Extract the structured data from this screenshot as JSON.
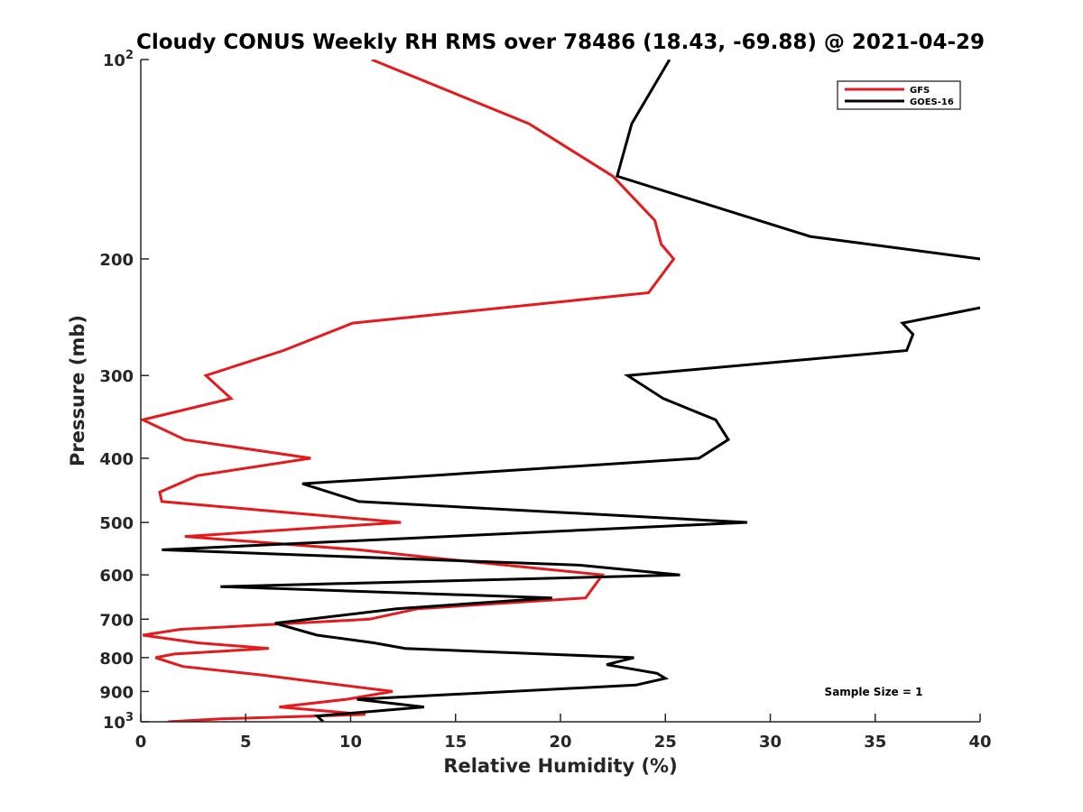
{
  "chart_data": {
    "type": "line",
    "title": "Cloudy CONUS Weekly RH RMS over 78486 (18.43, -69.88) @ 2021-04-29",
    "xlabel": "Relative Humidity (%)",
    "ylabel": "Pressure (mb)",
    "xlim": [
      0,
      40
    ],
    "ylim": [
      100,
      1000
    ],
    "y_scale": "log",
    "y_reversed": true,
    "x_ticks": [
      {
        "value": 0,
        "label": "0"
      },
      {
        "value": 5,
        "label": "5"
      },
      {
        "value": 10,
        "label": "10"
      },
      {
        "value": 15,
        "label": "15"
      },
      {
        "value": 20,
        "label": "20"
      },
      {
        "value": 25,
        "label": "25"
      },
      {
        "value": 30,
        "label": "30"
      },
      {
        "value": 35,
        "label": "35"
      },
      {
        "value": 40,
        "label": "40"
      }
    ],
    "y_ticks": [
      {
        "value": 100,
        "base": "10",
        "exp": "2"
      },
      {
        "value": 200,
        "label": "200"
      },
      {
        "value": 300,
        "label": "300"
      },
      {
        "value": 400,
        "label": "400"
      },
      {
        "value": 500,
        "label": "500"
      },
      {
        "value": 600,
        "label": "600"
      },
      {
        "value": 700,
        "label": "700"
      },
      {
        "value": 800,
        "label": "800"
      },
      {
        "value": 900,
        "label": "900"
      },
      {
        "value": 1000,
        "base": "10",
        "exp": "3"
      }
    ],
    "grid": false,
    "legend_position": "top-right",
    "annotation": "Sample Size = 1",
    "series": [
      {
        "name": "GFS",
        "color": "#e41a1c",
        "points": [
          [
            11.0,
            100
          ],
          [
            18.5,
            125
          ],
          [
            22.5,
            150
          ],
          [
            24.5,
            175
          ],
          [
            24.8,
            190
          ],
          [
            25.4,
            200
          ],
          [
            24.2,
            225
          ],
          [
            10.1,
            250
          ],
          [
            6.8,
            275
          ],
          [
            3.1,
            300
          ],
          [
            4.3,
            325
          ],
          [
            0.1,
            350
          ],
          [
            2.1,
            375
          ],
          [
            8.1,
            400
          ],
          [
            2.7,
            425
          ],
          [
            0.9,
            450
          ],
          [
            1.0,
            465
          ],
          [
            12.4,
            500
          ],
          [
            2.1,
            525
          ],
          [
            10.4,
            550
          ],
          [
            13.8,
            565
          ],
          [
            22.0,
            600
          ],
          [
            21.2,
            650
          ],
          [
            13.2,
            675
          ],
          [
            10.9,
            700
          ],
          [
            1.9,
            725
          ],
          [
            0.1,
            740
          ],
          [
            2.7,
            760
          ],
          [
            6.1,
            775
          ],
          [
            1.6,
            790
          ],
          [
            0.7,
            800
          ],
          [
            2.0,
            825
          ],
          [
            5.8,
            850
          ],
          [
            12.0,
            900
          ],
          [
            9.8,
            925
          ],
          [
            6.6,
            950
          ],
          [
            10.7,
            975
          ],
          [
            3.8,
            990
          ],
          [
            1.3,
            1000
          ]
        ]
      },
      {
        "name": "GOES-16",
        "color": "#000000",
        "points": [
          [
            25.2,
            100
          ],
          [
            23.4,
            125
          ],
          [
            22.7,
            150
          ],
          [
            31.9,
            185
          ],
          [
            40.0,
            200
          ],
          [
            null,
            null
          ],
          [
            40.0,
            237
          ],
          [
            36.3,
            250
          ],
          [
            36.8,
            260
          ],
          [
            36.5,
            275
          ],
          [
            23.2,
            300
          ],
          [
            24.9,
            325
          ],
          [
            27.4,
            350
          ],
          [
            28.0,
            375
          ],
          [
            26.6,
            400
          ],
          [
            13.8,
            425
          ],
          [
            7.7,
            437
          ],
          [
            10.4,
            465
          ],
          [
            28.9,
            500
          ],
          [
            1.0,
            550
          ],
          [
            20.9,
            580
          ],
          [
            25.7,
            600
          ],
          [
            3.8,
            625
          ],
          [
            19.6,
            650
          ],
          [
            12.2,
            675
          ],
          [
            6.4,
            710
          ],
          [
            8.4,
            740
          ],
          [
            11.1,
            760
          ],
          [
            12.6,
            775
          ],
          [
            23.5,
            800
          ],
          [
            22.2,
            820
          ],
          [
            24.6,
            845
          ],
          [
            25.0,
            860
          ],
          [
            23.6,
            880
          ],
          [
            10.3,
            925
          ],
          [
            13.5,
            950
          ],
          [
            8.4,
            980
          ],
          [
            8.7,
            1000
          ]
        ]
      }
    ]
  }
}
